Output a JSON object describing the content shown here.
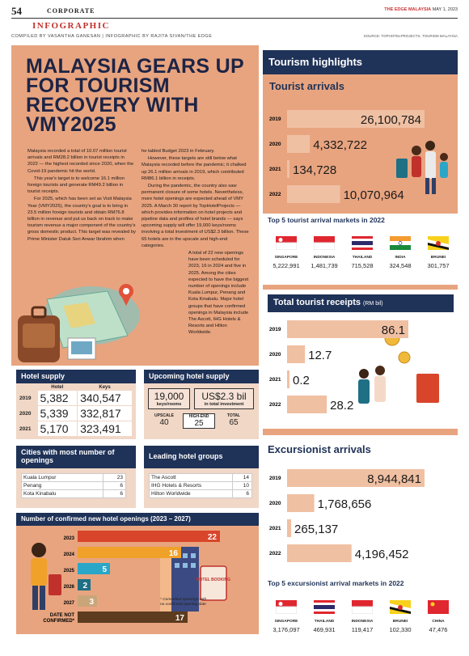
{
  "header": {
    "page_number": "54",
    "section": "CORPORATE",
    "masthead": "THE EDGE MALAYSIA",
    "masthead_date": "MAY 1, 2023",
    "kicker": "INFOGRAPHIC",
    "credits": "COMPILED BY VASANTHA GANESAN  |  INFOGRAPHIC BY RAJITA SIVAN/THE EDGE",
    "source": "SOURCE: TOPHOTELPROJECTS, TOURISM MALAYSIA"
  },
  "article": {
    "headline": "MALAYSIA GEARS UP FOR TOURISM RECOVERY WITH VMY2025",
    "col1": [
      "Malaysia recorded a total of 10.07 million tourist arrivals and RM28.2 billion in tourist receipts in 2022 — the highest recorded since 2020, when the Covid-19 pandemic hit the world.",
      "This year's target is to welcome 16.1 million foreign tourists and generate RM49.2 billion in tourist receipts.",
      "For 2025, which has been set as Visit Malaysia Year (VMY2025), the country's goal is to bring in 23.5 million foreign tourists and obtain RM76.8 billion in revenue and put us back on track to make tourism revenue a major component of the country's gross domestic product. This target was revealed by Prime Minister Datuk Seri Anwar Ibrahim when"
    ],
    "col2": [
      "he tabled Budget 2023 in February.",
      "However, these targets are still below what Malaysia recorded before the pandemic; it chalked up 26.1 million arrivals in 2019, which contributed RM86.1 billion in receipts.",
      "During the pandemic, the country also saw permanent closure of some hotels. Nevertheless, more hotel openings are expected ahead of VMY 2025. A March 30 report by TopHotelProjects — which provides information on hotel projects and pipeline data and profiles of hotel brands — says upcoming supply will offer 19,000 keys/rooms involving a total investment of US$2.3 billion. These 65 hotels are in the upscale and high-end categories.",
      "A total of 22 new openings have been scheduled for 2023, 16 in 2024 and five in 2025. Among the cities expected to have the biggest number of openings include Kuala Lumpur, Penang and Kota Kinabalu. Major hotel groups that have confirmed openings in Malaysia include The Ascott, IHG Hotels & Resorts and Hilton Worldwide."
    ]
  },
  "hotel_supply": {
    "title": "Hotel supply",
    "col_hotel": "Hotel",
    "col_keys": "Keys",
    "rows": [
      {
        "year": "2019",
        "hotel": "5,382",
        "keys": "340,547"
      },
      {
        "year": "2020",
        "hotel": "5,339",
        "keys": "332,817"
      },
      {
        "year": "2021",
        "hotel": "5,170",
        "keys": "323,491"
      }
    ]
  },
  "upcoming_supply": {
    "title": "Upcoming hotel supply",
    "keys_value": "19,000",
    "keys_label": "keys/rooms",
    "invest_value": "US$2.3 bil",
    "invest_label": "in total investment",
    "upscale_label": "UPSCALE",
    "upscale_value": "40",
    "highend_label": "HIGH-END",
    "highend_value": "25",
    "total_label": "TOTAL",
    "total_value": "65"
  },
  "cities": {
    "title": "Cities with most number of openings",
    "rows": [
      {
        "name": "Kuala Lumpur",
        "value": "23"
      },
      {
        "name": "Penang",
        "value": "6"
      },
      {
        "name": "Kota Kinabalu",
        "value": "6"
      }
    ]
  },
  "hotel_groups": {
    "title": "Leading hotel groups",
    "rows": [
      {
        "name": "The Ascott",
        "value": "14"
      },
      {
        "name": "IHG Hotels & Resorts",
        "value": "10"
      },
      {
        "name": "Hilton Worldwide",
        "value": "6"
      }
    ]
  },
  "new_openings": {
    "title": "Number of confirmed new hotel openings (2023 – 2027)",
    "note": "* Committed openings with no confirmed opening date",
    "sign": "HOTEL BOOKING",
    "colors": [
      "#d9452b",
      "#f0a12a",
      "#2aa6c8",
      "#1f6f85",
      "#c9a57a",
      "#5c3b1e"
    ]
  },
  "tourism": {
    "title": "Tourism highlights",
    "arrivals_title": "Tourist arrivals",
    "top5_arrivals_title": "Top 5 tourist arrival markets in 2022",
    "top5_arrivals": [
      {
        "country": "SINGAPORE",
        "value": "5,222,991",
        "flag": "singapore-flag"
      },
      {
        "country": "INDONESIA",
        "value": "1,481,739",
        "flag": "indonesia-flag"
      },
      {
        "country": "THAILAND",
        "value": "715,528",
        "flag": "thailand-flag"
      },
      {
        "country": "INDIA",
        "value": "324,548",
        "flag": "india-flag"
      },
      {
        "country": "BRUNEI",
        "value": "301,757",
        "flag": "brunei-flag"
      }
    ],
    "receipts_title": "Total tourist receipts",
    "receipts_unit": "(RM bil)",
    "excursionist_title": "Excursionist arrivals",
    "top5_excursionist_title": "Top 5 excursionist arrival markets in 2022",
    "top5_excursionist": [
      {
        "country": "SINGAPORE",
        "value": "3,176,097",
        "flag": "singapore-flag"
      },
      {
        "country": "THAILAND",
        "value": "469,931",
        "flag": "thailand-flag"
      },
      {
        "country": "INDONESIA",
        "value": "119,417",
        "flag": "indonesia-flag"
      },
      {
        "country": "BRUNEI",
        "value": "102,330",
        "flag": "brunei-flag"
      },
      {
        "country": "CHINA",
        "value": "47,476",
        "flag": "china-flag"
      }
    ]
  },
  "chart_data": [
    {
      "type": "bar",
      "title": "Tourist arrivals",
      "categories": [
        "2019",
        "2020",
        "2021",
        "2022"
      ],
      "values": [
        26100784,
        4332722,
        134728,
        10070964
      ],
      "labels": [
        "26,100,784",
        "4,332,722",
        "134,728",
        "10,070,964"
      ]
    },
    {
      "type": "bar",
      "title": "Total tourist receipts",
      "ylabel": "(RM bil)",
      "categories": [
        "2019",
        "2020",
        "2021",
        "2022"
      ],
      "values": [
        86.1,
        12.7,
        0.2,
        28.2
      ],
      "labels": [
        "86.1",
        "12.7",
        "0.2",
        "28.2"
      ]
    },
    {
      "type": "bar",
      "title": "Excursionist arrivals",
      "categories": [
        "2019",
        "2020",
        "2021",
        "2022"
      ],
      "values": [
        8944841,
        1768656,
        265137,
        4196452
      ],
      "labels": [
        "8,944,841",
        "1,768,656",
        "265,137",
        "4,196,452"
      ]
    },
    {
      "type": "bar",
      "title": "Number of confirmed new hotel openings (2023 – 2027)",
      "categories": [
        "2023",
        "2024",
        "2025",
        "2026",
        "2027",
        "DATE NOT CONFIRMED*"
      ],
      "values": [
        22,
        16,
        5,
        2,
        3,
        17
      ]
    }
  ]
}
